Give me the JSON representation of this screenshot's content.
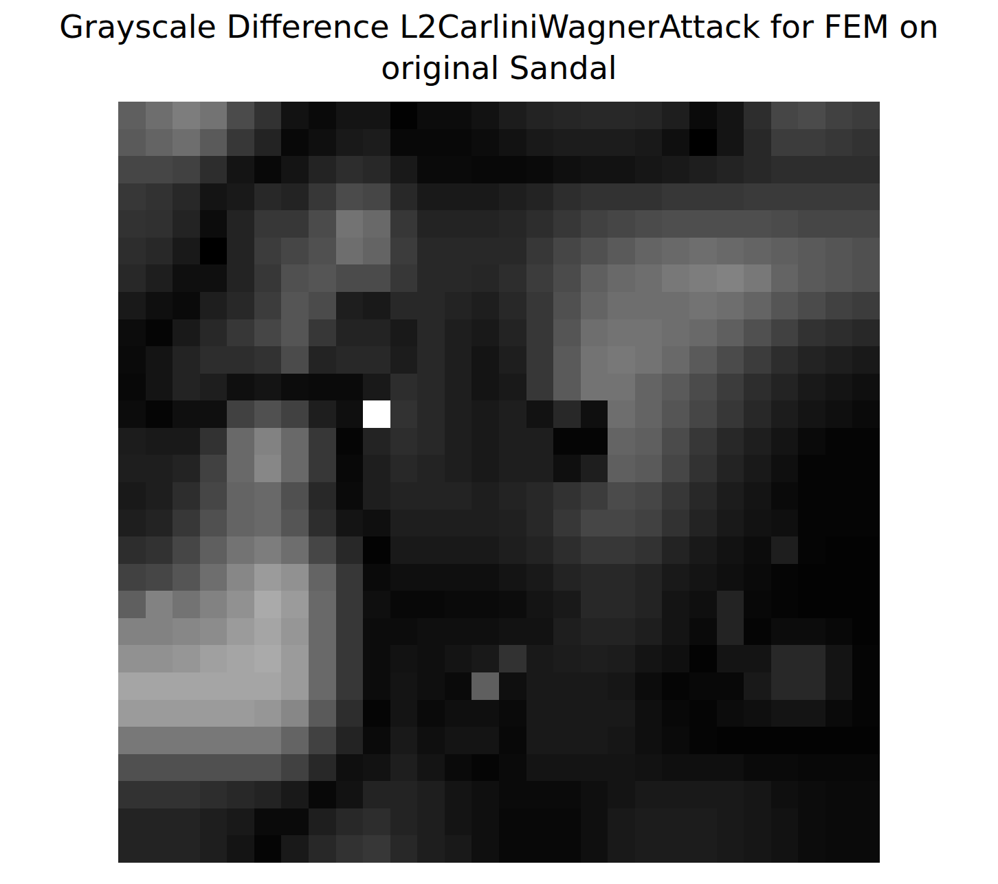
{
  "chart_data": {
    "type": "heatmap",
    "title": "Grayscale Difference L2CarliniWagnerAttack for FEM on\noriginal Sandal",
    "color": "gray",
    "tick_labels": false,
    "grid": false,
    "color_range": [
      0,
      255
    ],
    "cells": [
      [
        95,
        110,
        125,
        115,
        75,
        50,
        18,
        10,
        20,
        20,
        2,
        12,
        12,
        18,
        28,
        35,
        38,
        40,
        40,
        38,
        30,
        10,
        20,
        45,
        70,
        75,
        65,
        60
      ],
      [
        90,
        100,
        110,
        90,
        55,
        35,
        8,
        15,
        25,
        28,
        8,
        8,
        8,
        12,
        18,
        25,
        28,
        28,
        28,
        25,
        15,
        0,
        20,
        40,
        60,
        60,
        55,
        50
      ],
      [
        70,
        70,
        65,
        45,
        20,
        8,
        20,
        35,
        45,
        40,
        25,
        10,
        10,
        8,
        8,
        10,
        15,
        18,
        18,
        22,
        25,
        30,
        35,
        40,
        45,
        45,
        45,
        45
      ],
      [
        55,
        50,
        40,
        20,
        25,
        40,
        35,
        55,
        75,
        70,
        40,
        25,
        25,
        25,
        30,
        35,
        45,
        50,
        50,
        50,
        55,
        55,
        55,
        58,
        58,
        58,
        58,
        58
      ],
      [
        50,
        48,
        35,
        12,
        35,
        55,
        55,
        75,
        115,
        105,
        55,
        35,
        35,
        35,
        38,
        45,
        55,
        65,
        70,
        75,
        78,
        78,
        78,
        78,
        75,
        70,
        70,
        70
      ],
      [
        45,
        40,
        25,
        0,
        35,
        60,
        70,
        80,
        110,
        100,
        60,
        40,
        40,
        40,
        40,
        55,
        70,
        80,
        90,
        100,
        105,
        110,
        105,
        100,
        95,
        90,
        85,
        80
      ],
      [
        40,
        30,
        15,
        15,
        35,
        55,
        80,
        85,
        75,
        75,
        55,
        40,
        40,
        38,
        45,
        60,
        75,
        95,
        105,
        110,
        120,
        125,
        130,
        120,
        100,
        90,
        85,
        80
      ],
      [
        25,
        15,
        10,
        30,
        40,
        60,
        85,
        75,
        30,
        25,
        40,
        40,
        35,
        30,
        40,
        55,
        80,
        100,
        110,
        110,
        110,
        115,
        110,
        100,
        85,
        75,
        65,
        60
      ],
      [
        12,
        5,
        25,
        40,
        55,
        70,
        85,
        55,
        35,
        35,
        25,
        40,
        30,
        25,
        35,
        55,
        85,
        110,
        115,
        115,
        110,
        105,
        95,
        80,
        65,
        50,
        45,
        40
      ],
      [
        10,
        20,
        35,
        45,
        45,
        50,
        75,
        35,
        40,
        40,
        28,
        40,
        30,
        20,
        30,
        55,
        90,
        115,
        120,
        115,
        105,
        90,
        75,
        60,
        45,
        35,
        30,
        25
      ],
      [
        8,
        20,
        35,
        30,
        15,
        20,
        12,
        10,
        10,
        25,
        45,
        40,
        30,
        20,
        25,
        55,
        90,
        115,
        115,
        100,
        90,
        75,
        60,
        45,
        35,
        25,
        20,
        15
      ],
      [
        12,
        5,
        15,
        15,
        65,
        80,
        65,
        30,
        15,
        255,
        50,
        40,
        30,
        25,
        30,
        18,
        40,
        15,
        110,
        100,
        85,
        70,
        55,
        40,
        28,
        20,
        15,
        10
      ],
      [
        28,
        25,
        25,
        50,
        105,
        130,
        105,
        55,
        5,
        35,
        45,
        40,
        30,
        25,
        30,
        30,
        5,
        5,
        100,
        95,
        75,
        55,
        40,
        30,
        20,
        10,
        5,
        5
      ],
      [
        30,
        30,
        35,
        65,
        105,
        135,
        105,
        55,
        8,
        30,
        40,
        35,
        30,
        25,
        30,
        30,
        15,
        30,
        95,
        90,
        70,
        50,
        35,
        25,
        15,
        5,
        5,
        5
      ],
      [
        25,
        30,
        45,
        70,
        100,
        105,
        80,
        40,
        10,
        30,
        35,
        35,
        35,
        30,
        35,
        40,
        50,
        60,
        75,
        70,
        55,
        40,
        28,
        20,
        10,
        5,
        5,
        5
      ],
      [
        30,
        35,
        55,
        80,
        100,
        105,
        85,
        45,
        20,
        15,
        30,
        30,
        30,
        30,
        32,
        40,
        55,
        70,
        70,
        65,
        50,
        35,
        25,
        18,
        15,
        5,
        5,
        5
      ],
      [
        45,
        50,
        70,
        95,
        115,
        125,
        110,
        70,
        40,
        3,
        25,
        25,
        25,
        25,
        30,
        35,
        45,
        55,
        55,
        50,
        35,
        25,
        18,
        12,
        30,
        5,
        3,
        3
      ],
      [
        65,
        70,
        85,
        110,
        135,
        155,
        145,
        100,
        55,
        10,
        15,
        15,
        15,
        15,
        20,
        25,
        35,
        40,
        40,
        35,
        25,
        20,
        15,
        10,
        5,
        3,
        3,
        3
      ],
      [
        95,
        130,
        115,
        130,
        145,
        170,
        155,
        105,
        55,
        15,
        8,
        8,
        10,
        10,
        12,
        20,
        25,
        40,
        40,
        35,
        20,
        15,
        35,
        8,
        5,
        3,
        3,
        3
      ],
      [
        130,
        130,
        135,
        140,
        155,
        165,
        150,
        105,
        55,
        12,
        12,
        15,
        15,
        15,
        18,
        18,
        30,
        35,
        35,
        30,
        20,
        10,
        35,
        5,
        12,
        12,
        8,
        3
      ],
      [
        145,
        145,
        150,
        160,
        165,
        170,
        155,
        105,
        55,
        12,
        18,
        15,
        20,
        25,
        50,
        25,
        28,
        30,
        28,
        20,
        15,
        3,
        20,
        20,
        40,
        40,
        20,
        5
      ],
      [
        165,
        165,
        165,
        165,
        165,
        165,
        155,
        105,
        55,
        12,
        20,
        15,
        10,
        95,
        15,
        25,
        25,
        25,
        22,
        12,
        5,
        8,
        8,
        25,
        40,
        40,
        20,
        5
      ],
      [
        155,
        155,
        155,
        155,
        155,
        150,
        135,
        90,
        45,
        5,
        20,
        10,
        15,
        15,
        10,
        25,
        25,
        25,
        25,
        15,
        8,
        5,
        12,
        15,
        20,
        20,
        10,
        5
      ],
      [
        120,
        120,
        120,
        120,
        120,
        120,
        100,
        65,
        35,
        10,
        25,
        15,
        20,
        20,
        8,
        25,
        25,
        25,
        22,
        15,
        10,
        5,
        3,
        3,
        3,
        3,
        3,
        3
      ],
      [
        80,
        80,
        80,
        80,
        80,
        80,
        65,
        40,
        15,
        18,
        30,
        20,
        10,
        5,
        10,
        20,
        20,
        20,
        20,
        18,
        15,
        15,
        15,
        10,
        10,
        8,
        8,
        8
      ],
      [
        50,
        50,
        50,
        45,
        40,
        35,
        25,
        8,
        18,
        35,
        35,
        30,
        20,
        15,
        10,
        10,
        10,
        15,
        20,
        25,
        25,
        25,
        25,
        22,
        15,
        12,
        10,
        10
      ],
      [
        35,
        35,
        35,
        30,
        25,
        10,
        10,
        30,
        40,
        45,
        35,
        30,
        20,
        15,
        8,
        8,
        8,
        15,
        25,
        28,
        28,
        28,
        25,
        22,
        18,
        12,
        10,
        10
      ],
      [
        35,
        35,
        35,
        30,
        20,
        5,
        25,
        40,
        50,
        55,
        40,
        30,
        25,
        15,
        8,
        8,
        8,
        15,
        25,
        28,
        28,
        28,
        25,
        22,
        18,
        12,
        10,
        10
      ]
    ]
  }
}
